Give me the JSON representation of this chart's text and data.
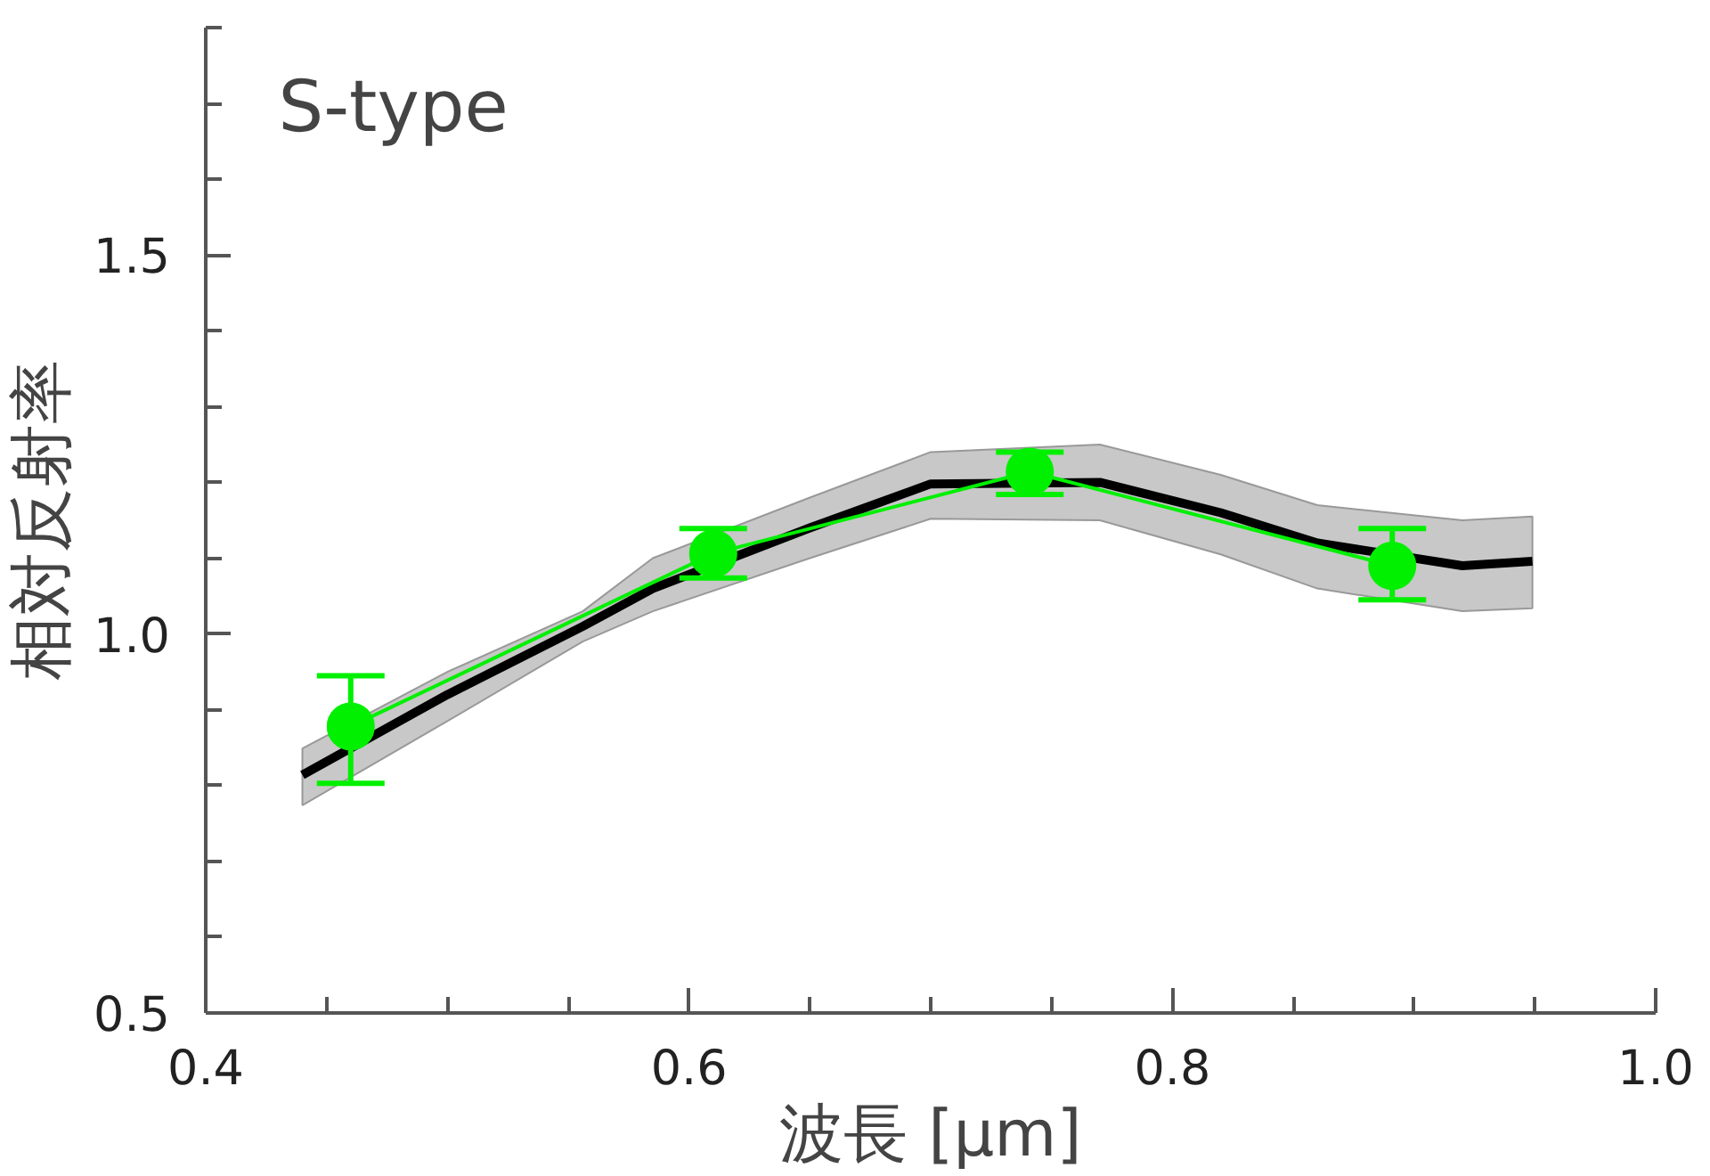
{
  "chart_data": {
    "type": "line",
    "title": "S-type",
    "xlabel": "波長 [μm]",
    "ylabel": "相対反射率",
    "xlim": [
      0.4,
      1.0
    ],
    "ylim": [
      0.5,
      1.8
    ],
    "xticks": [
      0.4,
      {
        "value": 0.45,
        "label": null
      },
      {
        "value": 0.5,
        "label": null
      },
      {
        "value": 0.55,
        "label": null
      },
      0.6,
      {
        "value": 0.65,
        "label": null
      },
      {
        "value": 0.7,
        "label": null
      },
      {
        "value": 0.75,
        "label": null
      },
      0.8,
      {
        "value": 0.85,
        "label": null
      },
      {
        "value": 0.9,
        "label": null
      },
      {
        "value": 0.95,
        "label": null
      },
      {
        "value": 1.0,
        "label": "1.0"
      }
    ],
    "yticks": [
      0.5,
      {
        "value": 0.6,
        "label": null
      },
      {
        "value": 0.7,
        "label": null
      },
      {
        "value": 0.8,
        "label": null
      },
      {
        "value": 0.9,
        "label": null
      },
      {
        "value": 1.0,
        "label": "1.0"
      },
      {
        "value": 1.1,
        "label": null
      },
      {
        "value": 1.2,
        "label": null
      },
      {
        "value": 1.3,
        "label": null
      },
      {
        "value": 1.4,
        "label": null
      },
      1.5,
      {
        "value": 1.6,
        "label": null
      },
      {
        "value": 1.7,
        "label": null
      },
      {
        "value": 1.8,
        "label": null
      }
    ],
    "grid": false,
    "series": [
      {
        "color": "#000000",
        "x": [
          0.44,
          0.5,
          0.556,
          0.585,
          0.65,
          0.7,
          0.77,
          0.82,
          0.86,
          0.92,
          0.949
        ],
        "values": [
          0.814,
          0.92,
          1.01,
          1.06,
          1.14,
          1.198,
          1.2,
          1.16,
          1.12,
          1.09,
          1.096
        ],
        "lower": [
          0.774,
          0.885,
          0.99,
          1.03,
          1.1,
          1.152,
          1.15,
          1.105,
          1.06,
          1.03,
          1.034
        ],
        "upper": [
          0.849,
          0.95,
          1.03,
          1.1,
          1.18,
          1.24,
          1.25,
          1.21,
          1.17,
          1.15,
          1.155
        ],
        "marker": "none"
      },
      {
        "color": "#00f000",
        "x": [
          0.46,
          0.61,
          0.741,
          0.891
        ],
        "values": [
          0.878,
          1.106,
          1.214,
          1.09
        ],
        "errors": [
          [
            0.803,
            0.945
          ],
          [
            1.074,
            1.139
          ],
          [
            1.184,
            1.24
          ],
          [
            1.045,
            1.139
          ]
        ],
        "marker": "circle"
      }
    ]
  }
}
